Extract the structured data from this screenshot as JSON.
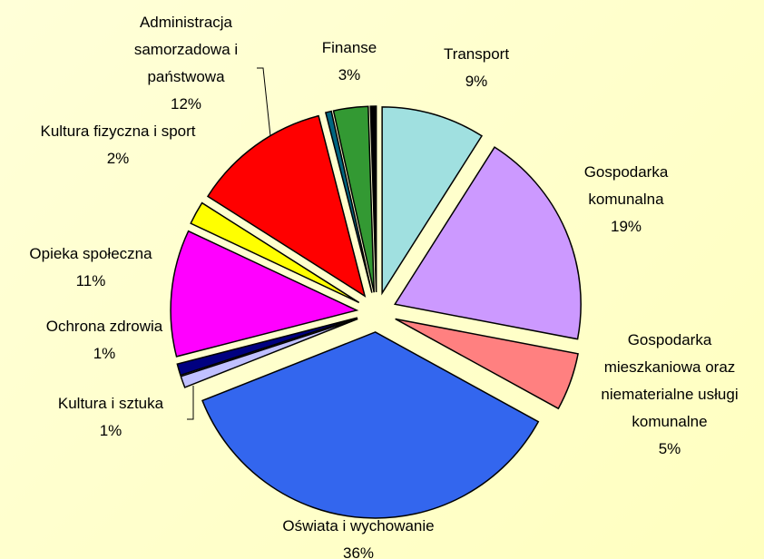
{
  "chart_data": {
    "type": "pie",
    "categories": [
      "Transport",
      "Gospodarka komunalna",
      "Gospodarka mieszkaniowa oraz niematerialne usługi komunalne",
      "Oświata i wychowanie",
      "Kultura i sztuka",
      "Ochrona zdrowia",
      "Opieka społeczna",
      "Kultura fizyczna i sport",
      "Administracja samorzadowa i państwowa",
      null,
      "Finanse",
      null
    ],
    "values": [
      9,
      19,
      5,
      36,
      1,
      1,
      11,
      2,
      12,
      0.5,
      3,
      0.5
    ],
    "value_labels": [
      "9%",
      "19%",
      "5%",
      "36%",
      "1%",
      "1%",
      "11%",
      "2%",
      "12%",
      null,
      "3%",
      null
    ],
    "colors": [
      "#a0e0e0",
      "#cc99ff",
      "#ff8080",
      "#3366ee",
      "#c0c0ff",
      "#000080",
      "#ff00ff",
      "#ffff00",
      "#ff0000",
      "#006680",
      "#339933",
      "#000000"
    ]
  }
}
